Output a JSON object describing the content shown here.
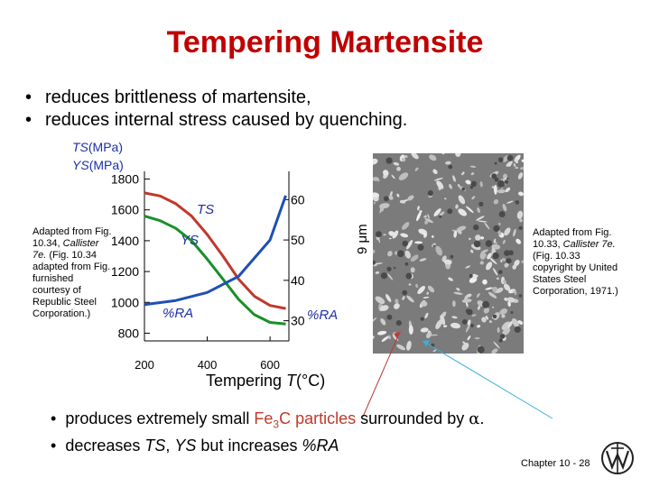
{
  "title": "Tempering Martensite",
  "bullets": [
    "reduces brittleness of martensite,",
    "reduces internal stress caused by quenching."
  ],
  "chart": {
    "ylabel_ts_italic": "TS",
    "ylabel_ts_unit": "(MPa)",
    "ylabel_ys_italic": "YS",
    "ylabel_ys_unit": "(MPa)",
    "xlabel_text": "Tempering ",
    "xlabel_var": "T",
    "xlabel_unit": "(°C)",
    "right_axis_label": "%RA",
    "colors": {
      "ts": "#c0392b",
      "ys": "#1a8f2a",
      "ra": "#1f4fb5",
      "label": "#1b2fa6"
    }
  },
  "chart_data": {
    "type": "line",
    "x_ticks": [
      200,
      400,
      600
    ],
    "xlim": [
      200,
      660
    ],
    "y_left_ticks": [
      800,
      1000,
      1200,
      1400,
      1600,
      1800
    ],
    "ylim_left": [
      750,
      1850
    ],
    "y_right_ticks": [
      30,
      40,
      50,
      60
    ],
    "ylim_right": [
      25,
      67
    ],
    "series": [
      {
        "name": "TS",
        "axis": "left",
        "x": [
          200,
          250,
          300,
          350,
          400,
          450,
          500,
          550,
          600,
          650
        ],
        "values": [
          1710,
          1690,
          1640,
          1560,
          1440,
          1300,
          1150,
          1040,
          980,
          960
        ]
      },
      {
        "name": "YS",
        "axis": "left",
        "x": [
          200,
          250,
          300,
          350,
          400,
          450,
          500,
          550,
          600,
          650
        ],
        "values": [
          1560,
          1530,
          1480,
          1400,
          1280,
          1150,
          1020,
          920,
          870,
          860
        ]
      },
      {
        "name": "%RA",
        "axis": "right",
        "x": [
          200,
          300,
          400,
          500,
          600,
          650
        ],
        "values": [
          34,
          35,
          37,
          41,
          50,
          61
        ]
      }
    ]
  },
  "credit_left": {
    "pre": "Adapted from Fig. 10.34, ",
    "italic": "Callister 7e.",
    "post": " (Fig. 10.34 adapted from Fig. furnished courtesy of Republic Steel Corporation.)"
  },
  "credit_right": {
    "pre": "Adapted from Fig. 10.33, ",
    "italic": "Callister 7e.",
    "post": " (Fig. 10.33 copyright by United States Steel Corporation, 1971.)"
  },
  "scale_bar": "9 μm",
  "bottom_bullets": {
    "line1_pre": "produces extremely small ",
    "line1_fe": "Fe",
    "line1_sub": "3",
    "line1_c": "C particles",
    "line1_mid": " surrounded by ",
    "line1_alpha": "α",
    "line1_end": ".",
    "line2_pre": "decreases ",
    "line2_ts": "TS",
    "line2_comma": ", ",
    "line2_ys": "YS",
    "line2_mid": " but increases ",
    "line2_ra": "%RA"
  },
  "footer": {
    "chapter": "Chapter 10 - 28"
  }
}
